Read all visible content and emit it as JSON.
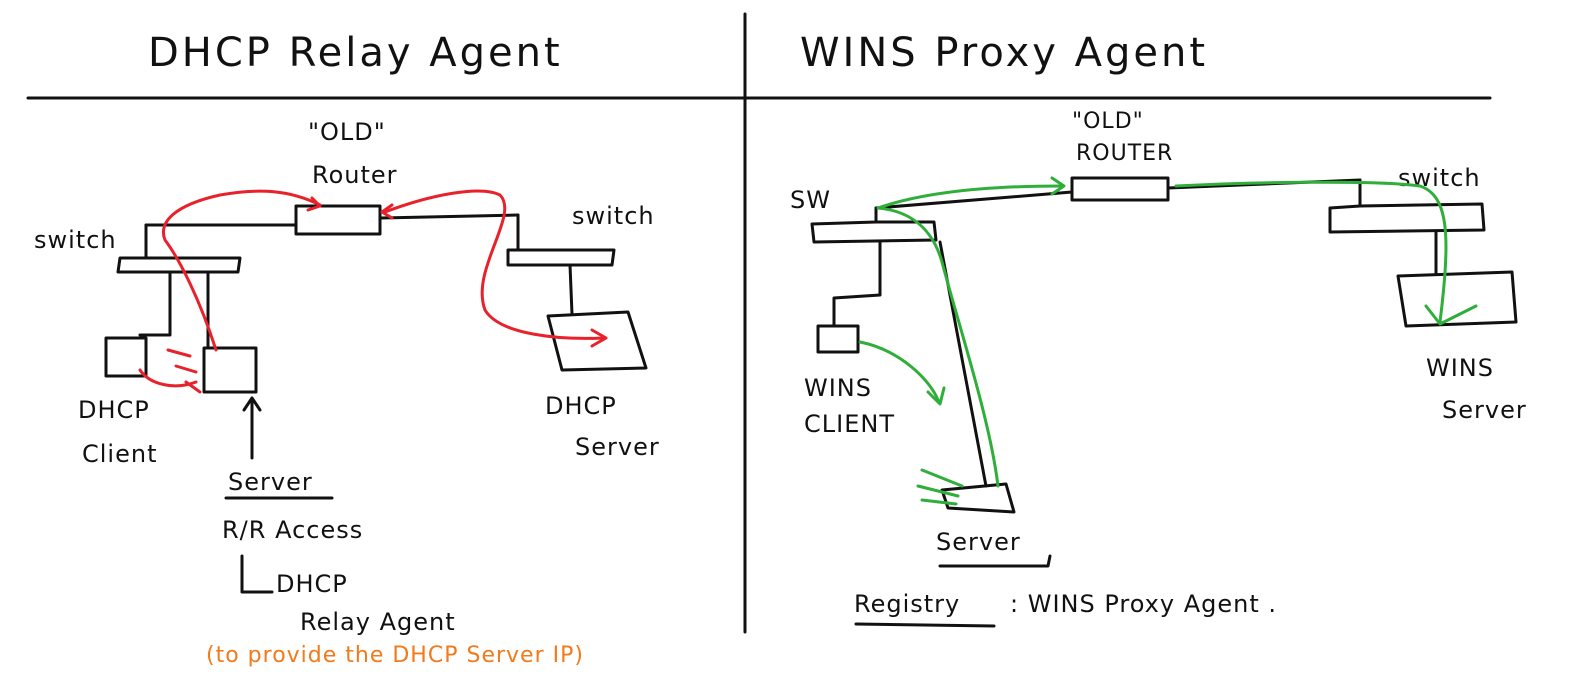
{
  "colors": {
    "ink": "#111111",
    "red_flow": "#e8212b",
    "green_flow": "#2fae3a",
    "orange_note": "#f27a1a"
  },
  "left_panel": {
    "title": "DHCP Relay Agent",
    "router_quote": "\"OLD\"",
    "router_label": "Router",
    "switch_left": "switch",
    "switch_right": "switch",
    "client_line1": "DHCP",
    "client_line2": "Client",
    "server_line1": "DHCP",
    "server_line2": "Server",
    "relay_server_heading": "Server",
    "rr_access": "R/R Access",
    "relay_line1": "DHCP",
    "relay_line2": "Relay Agent",
    "orange_note": "(to provide the DHCP Server IP)"
  },
  "right_panel": {
    "title": "WINS Proxy Agent",
    "router_quote": "\"OLD\"",
    "router_label": "ROUTER",
    "switch_left": "SW",
    "switch_right": "switch",
    "client_line1": "WINS",
    "client_line2": "CLIENT",
    "server_line1": "WINS",
    "server_line2": "Server",
    "proxy_server": "Server",
    "registry_label": "Registry",
    "registry_value": ": WINS Proxy Agent ."
  }
}
